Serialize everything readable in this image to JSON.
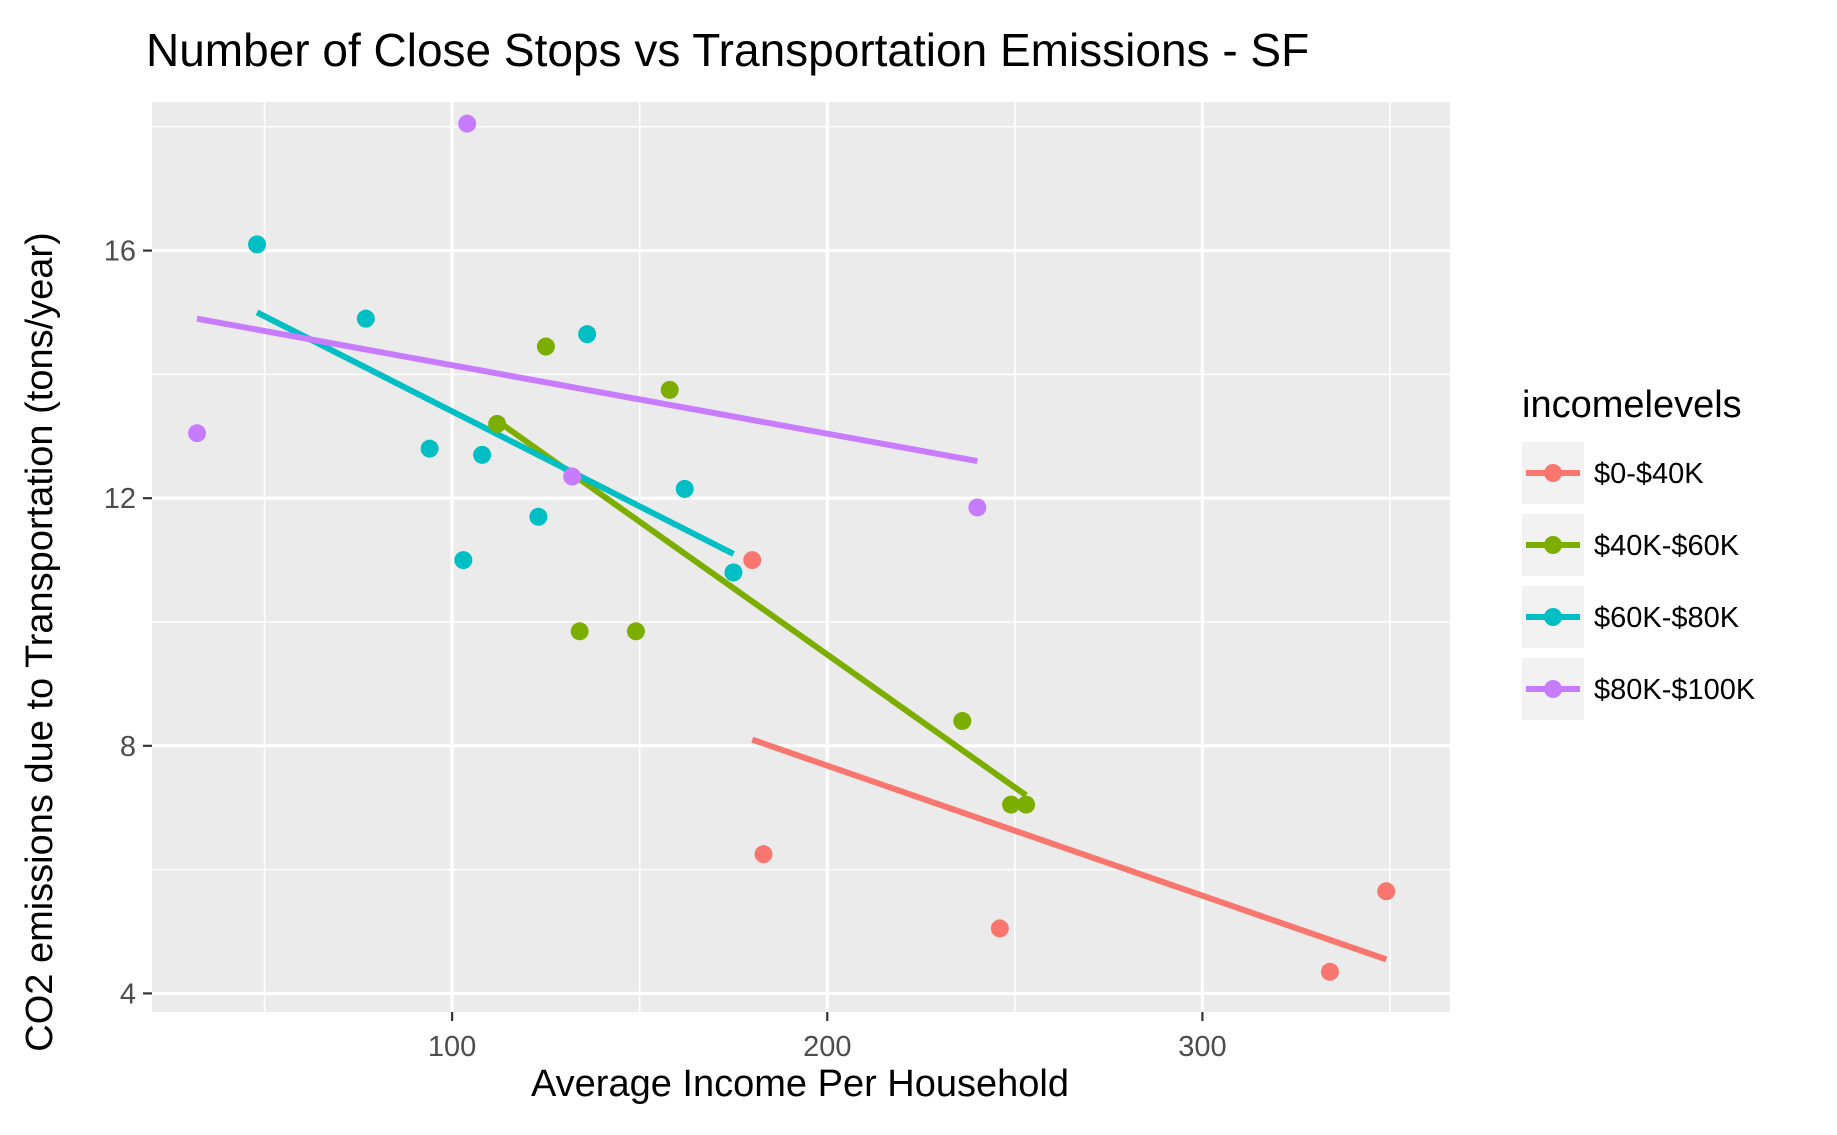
{
  "chart_data": {
    "type": "scatter",
    "title": "Number of Close Stops vs Transportation Emissions - SF",
    "xlabel": "Average Income Per Household",
    "ylabel": "CO2 emissions due to Transportation (tons/year)",
    "xlim": [
      20,
      366
    ],
    "ylim": [
      3.7,
      18.4
    ],
    "xticks": [
      100,
      200,
      300
    ],
    "xtick_labels": [
      "100",
      "200",
      "300"
    ],
    "yticks": [
      4,
      8,
      12,
      16
    ],
    "ytick_labels": [
      "4",
      "8",
      "12",
      "16"
    ],
    "grid": true,
    "legend": {
      "title": "incomelevels",
      "position": "right"
    },
    "series": [
      {
        "name": "$0-$40K",
        "color": "#F8766D",
        "points": [
          [
            180,
            11.0
          ],
          [
            183,
            6.25
          ],
          [
            246,
            5.05
          ],
          [
            334,
            4.35
          ],
          [
            349,
            5.65
          ]
        ],
        "trend": [
          [
            180,
            8.1
          ],
          [
            349,
            4.55
          ]
        ]
      },
      {
        "name": "$40K-$60K",
        "color": "#7CAE00",
        "points": [
          [
            112,
            13.2
          ],
          [
            125,
            14.45
          ],
          [
            134,
            9.85
          ],
          [
            149,
            9.85
          ],
          [
            158,
            13.75
          ],
          [
            236,
            8.4
          ],
          [
            249,
            7.05
          ],
          [
            253,
            7.05
          ]
        ],
        "trend": [
          [
            112,
            13.25
          ],
          [
            253,
            7.2
          ]
        ]
      },
      {
        "name": "$60K-$80K",
        "color": "#00BFC4",
        "points": [
          [
            48,
            16.1
          ],
          [
            77,
            14.9
          ],
          [
            94,
            12.8
          ],
          [
            103,
            11.0
          ],
          [
            108,
            12.7
          ],
          [
            123,
            11.7
          ],
          [
            136,
            14.65
          ],
          [
            162,
            12.15
          ],
          [
            175,
            10.8
          ]
        ],
        "trend": [
          [
            48,
            15.0
          ],
          [
            175,
            11.1
          ]
        ]
      },
      {
        "name": "$80K-$100K",
        "color": "#C77CFF",
        "points": [
          [
            32,
            13.05
          ],
          [
            104,
            18.05
          ],
          [
            132,
            12.35
          ],
          [
            240,
            11.85
          ]
        ],
        "trend": [
          [
            32,
            14.9
          ],
          [
            240,
            12.6
          ]
        ]
      }
    ]
  }
}
